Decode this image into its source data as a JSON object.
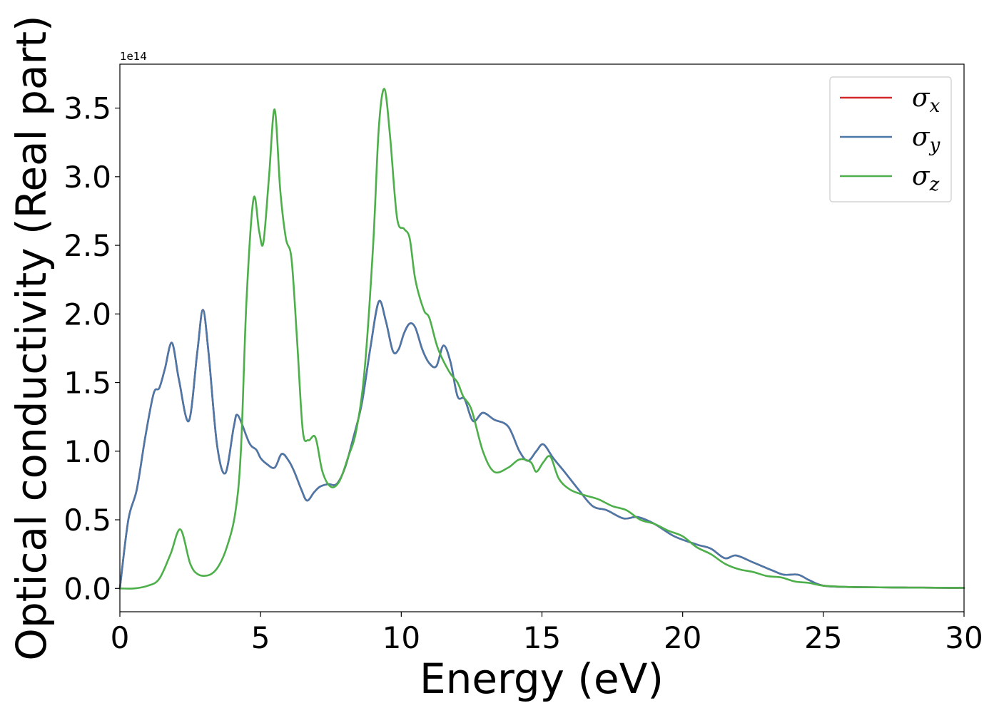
{
  "chart_data": {
    "type": "line",
    "title": "",
    "xlabel": "Energy (eV)",
    "ylabel": "Optical conductivity (Real part)",
    "offset_text": "1e14",
    "xlim": [
      0,
      30
    ],
    "ylim": [
      -0.17,
      3.82
    ],
    "x_ticks": [
      0,
      5,
      10,
      15,
      20,
      25,
      30
    ],
    "y_ticks": [
      0.0,
      0.5,
      1.0,
      1.5,
      2.0,
      2.5,
      3.0,
      3.5
    ],
    "x_tick_labels": [
      "0",
      "5",
      "10",
      "15",
      "20",
      "25",
      "30"
    ],
    "y_tick_labels": [
      "0.0",
      "0.5",
      "1.0",
      "1.5",
      "2.0",
      "2.5",
      "3.0",
      "3.5"
    ],
    "grid": false,
    "legend_position": "top-right",
    "series": [
      {
        "name": "σ_x",
        "symbol": "σ",
        "subscript": "x",
        "color": "#d62728",
        "x": [
          0,
          0.3,
          0.6,
          0.9,
          1.2,
          1.4,
          1.6,
          1.85,
          2.1,
          2.45,
          2.75,
          2.95,
          3.15,
          3.45,
          3.75,
          4.05,
          4.2,
          4.6,
          4.85,
          5.0,
          5.2,
          5.5,
          5.75,
          6.0,
          6.2,
          6.45,
          6.65,
          6.9,
          7.1,
          7.4,
          7.7,
          8.0,
          8.3,
          8.6,
          8.9,
          9.2,
          9.45,
          9.7,
          9.9,
          10.1,
          10.3,
          10.5,
          10.75,
          11.0,
          11.25,
          11.5,
          11.75,
          12.0,
          12.25,
          12.55,
          12.9,
          13.3,
          13.8,
          14.2,
          14.5,
          14.8,
          15.05,
          15.4,
          15.8,
          16.3,
          16.8,
          17.3,
          17.9,
          18.4,
          19.0,
          19.7,
          20.5,
          21.0,
          21.5,
          21.9,
          22.5,
          23.2,
          23.6,
          24.1,
          24.5,
          25.0,
          26,
          27,
          28,
          29,
          30
        ],
        "y": [
          0,
          0.5,
          0.72,
          1.1,
          1.42,
          1.46,
          1.6,
          1.79,
          1.52,
          1.22,
          1.72,
          2.03,
          1.72,
          1.05,
          0.84,
          1.18,
          1.26,
          1.06,
          1.01,
          0.95,
          0.91,
          0.88,
          0.98,
          0.93,
          0.85,
          0.72,
          0.64,
          0.7,
          0.74,
          0.76,
          0.76,
          0.88,
          1.1,
          1.35,
          1.75,
          2.09,
          1.95,
          1.73,
          1.74,
          1.86,
          1.93,
          1.9,
          1.74,
          1.64,
          1.62,
          1.77,
          1.65,
          1.4,
          1.38,
          1.22,
          1.28,
          1.23,
          1.18,
          1.0,
          0.93,
          1.0,
          1.05,
          0.95,
          0.85,
          0.72,
          0.6,
          0.57,
          0.51,
          0.52,
          0.47,
          0.38,
          0.32,
          0.29,
          0.22,
          0.24,
          0.19,
          0.13,
          0.1,
          0.1,
          0.06,
          0.02,
          0.01,
          0.008,
          0.006,
          0.005,
          0.004
        ]
      },
      {
        "name": "σ_y",
        "symbol": "σ",
        "subscript": "y",
        "color": "#4a78a8",
        "x": [
          0,
          0.3,
          0.6,
          0.9,
          1.2,
          1.4,
          1.6,
          1.85,
          2.1,
          2.45,
          2.75,
          2.95,
          3.15,
          3.45,
          3.75,
          4.05,
          4.2,
          4.6,
          4.85,
          5.0,
          5.2,
          5.5,
          5.75,
          6.0,
          6.2,
          6.45,
          6.65,
          6.9,
          7.1,
          7.4,
          7.7,
          8.0,
          8.3,
          8.6,
          8.9,
          9.2,
          9.45,
          9.7,
          9.9,
          10.1,
          10.3,
          10.5,
          10.75,
          11.0,
          11.25,
          11.5,
          11.75,
          12.0,
          12.25,
          12.55,
          12.9,
          13.3,
          13.8,
          14.2,
          14.5,
          14.8,
          15.05,
          15.4,
          15.8,
          16.3,
          16.8,
          17.3,
          17.9,
          18.4,
          19.0,
          19.7,
          20.5,
          21.0,
          21.5,
          21.9,
          22.5,
          23.2,
          23.6,
          24.1,
          24.5,
          25.0,
          26,
          27,
          28,
          29,
          30
        ],
        "y": [
          0,
          0.5,
          0.72,
          1.1,
          1.42,
          1.46,
          1.6,
          1.79,
          1.52,
          1.22,
          1.72,
          2.03,
          1.72,
          1.05,
          0.84,
          1.18,
          1.26,
          1.06,
          1.01,
          0.95,
          0.91,
          0.88,
          0.98,
          0.93,
          0.85,
          0.72,
          0.64,
          0.7,
          0.74,
          0.76,
          0.76,
          0.88,
          1.1,
          1.35,
          1.75,
          2.09,
          1.95,
          1.73,
          1.74,
          1.86,
          1.93,
          1.9,
          1.74,
          1.64,
          1.62,
          1.77,
          1.65,
          1.4,
          1.38,
          1.22,
          1.28,
          1.23,
          1.18,
          1.0,
          0.93,
          1.0,
          1.05,
          0.95,
          0.85,
          0.72,
          0.6,
          0.57,
          0.51,
          0.52,
          0.47,
          0.38,
          0.32,
          0.29,
          0.22,
          0.24,
          0.19,
          0.13,
          0.1,
          0.1,
          0.06,
          0.02,
          0.01,
          0.008,
          0.006,
          0.005,
          0.004
        ]
      },
      {
        "name": "σ_z",
        "symbol": "σ",
        "subscript": "z",
        "color": "#4daf4a",
        "x": [
          0,
          0.5,
          1.0,
          1.4,
          1.8,
          2.15,
          2.5,
          2.8,
          3.2,
          3.5,
          3.8,
          4.1,
          4.3,
          4.5,
          4.75,
          4.95,
          5.1,
          5.3,
          5.5,
          5.7,
          5.9,
          6.1,
          6.3,
          6.5,
          6.7,
          6.95,
          7.2,
          7.5,
          7.8,
          8.1,
          8.4,
          8.7,
          9.0,
          9.2,
          9.4,
          9.6,
          9.85,
          10.1,
          10.3,
          10.5,
          10.8,
          11.0,
          11.3,
          11.7,
          12.0,
          12.2,
          12.5,
          12.9,
          13.3,
          13.8,
          14.2,
          14.6,
          14.8,
          15.05,
          15.3,
          15.6,
          16.0,
          16.5,
          17.0,
          17.5,
          18.0,
          18.5,
          19.0,
          19.5,
          20.0,
          20.5,
          21.0,
          21.5,
          22.0,
          22.5,
          23.0,
          23.5,
          24.0,
          24.5,
          25.0,
          26,
          27,
          28,
          29,
          30
        ],
        "y": [
          0,
          0.0,
          0.02,
          0.07,
          0.25,
          0.43,
          0.18,
          0.1,
          0.1,
          0.16,
          0.3,
          0.55,
          1.0,
          2.1,
          2.84,
          2.6,
          2.52,
          3.0,
          3.49,
          2.9,
          2.55,
          2.4,
          1.8,
          1.15,
          1.08,
          1.1,
          0.85,
          0.74,
          0.78,
          0.95,
          1.15,
          1.6,
          2.5,
          3.35,
          3.64,
          3.3,
          2.7,
          2.62,
          2.55,
          2.25,
          2.03,
          1.97,
          1.75,
          1.58,
          1.5,
          1.4,
          1.3,
          1.0,
          0.85,
          0.88,
          0.94,
          0.92,
          0.85,
          0.92,
          0.96,
          0.8,
          0.72,
          0.68,
          0.65,
          0.6,
          0.57,
          0.5,
          0.47,
          0.42,
          0.38,
          0.3,
          0.25,
          0.18,
          0.14,
          0.12,
          0.09,
          0.08,
          0.05,
          0.04,
          0.02,
          0.01,
          0.008,
          0.006,
          0.005,
          0.004
        ]
      }
    ]
  }
}
